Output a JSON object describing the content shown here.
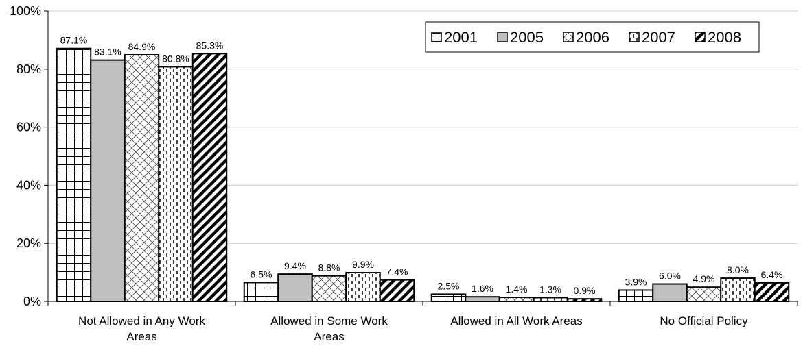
{
  "chart_data": {
    "type": "bar",
    "title": "",
    "xlabel": "",
    "ylabel": "",
    "ylim": [
      0,
      100
    ],
    "y_ticks": [
      "0%",
      "20%",
      "40%",
      "60%",
      "80%",
      "100%"
    ],
    "grid": true,
    "legend_position": "top-right",
    "categories": [
      [
        "Not Allowed in Any Work",
        "Areas"
      ],
      [
        "Allowed in Some Work",
        "Areas"
      ],
      [
        "Allowed in All Work Areas"
      ],
      [
        "No Official Policy"
      ]
    ],
    "series": [
      {
        "name": "2001",
        "pattern": "grid",
        "values": [
          87.1,
          6.5,
          2.5,
          3.9
        ],
        "labels": [
          "87.1%",
          "6.5%",
          "2.5%",
          "3.9%"
        ]
      },
      {
        "name": "2005",
        "pattern": "solid-gray",
        "values": [
          83.1,
          9.4,
          1.6,
          6.0
        ],
        "labels": [
          "83.1%",
          "9.4%",
          "1.6%",
          "6.0%"
        ]
      },
      {
        "name": "2006",
        "pattern": "diagonal-cross",
        "values": [
          84.9,
          8.8,
          1.4,
          4.9
        ],
        "labels": [
          "84.9%",
          "8.8%",
          "1.4%",
          "4.9%"
        ]
      },
      {
        "name": "2007",
        "pattern": "dashed-vertical",
        "values": [
          80.8,
          9.9,
          1.3,
          8.0
        ],
        "labels": [
          "80.8%",
          "9.9%",
          "1.3%",
          "8.0%"
        ]
      },
      {
        "name": "2008",
        "pattern": "thick-diagonal",
        "values": [
          85.3,
          7.4,
          0.9,
          6.4
        ],
        "labels": [
          "85.3%",
          "7.4%",
          "0.9%",
          "6.4%"
        ]
      }
    ],
    "colors": {
      "fill_gray": "#c0c0c0",
      "stroke": "#000000",
      "grid": "#c8c8c8"
    }
  }
}
